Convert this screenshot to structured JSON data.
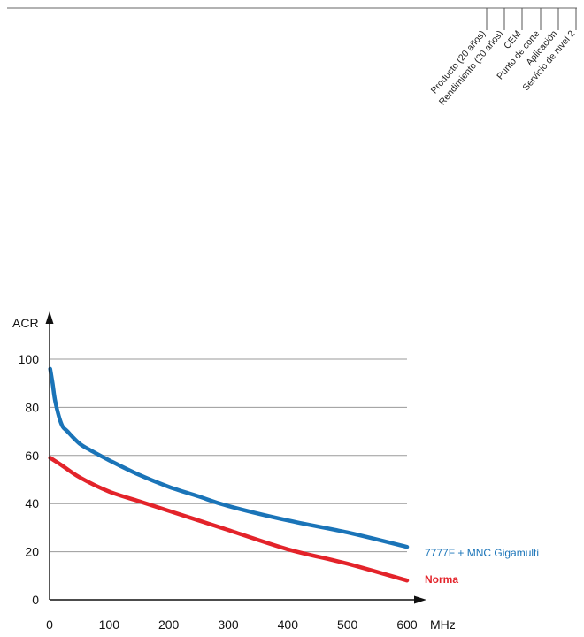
{
  "header": {
    "columns": [
      "Producto (20 años)",
      "Rendimiento (20 años)",
      "CEM",
      "Punto de corte",
      "Aplicación",
      "Servicio de nivel 2"
    ]
  },
  "chart_data": {
    "type": "line",
    "title": "",
    "xlabel": "MHz",
    "ylabel": "ACR",
    "xlim": [
      0,
      600
    ],
    "ylim": [
      0,
      100
    ],
    "x_ticks": [
      0,
      100,
      200,
      300,
      400,
      500,
      600
    ],
    "y_ticks": [
      0,
      20,
      40,
      60,
      80,
      100
    ],
    "grid": "horizontal",
    "legend": "right-end-of-lines",
    "series": [
      {
        "name": "7777F + MNC Gigamulti",
        "color": "#1a74b8",
        "x": [
          1,
          5,
          10,
          20,
          30,
          50,
          70,
          100,
          150,
          200,
          250,
          300,
          400,
          500,
          600
        ],
        "y": [
          96,
          90,
          82,
          73,
          70,
          65,
          62,
          58,
          52,
          47,
          43,
          39,
          33,
          28,
          22
        ]
      },
      {
        "name": "Norma",
        "color": "#e3232a",
        "x": [
          1,
          20,
          50,
          100,
          150,
          200,
          250,
          300,
          400,
          500,
          600
        ],
        "y": [
          59,
          56,
          51,
          45,
          41,
          37,
          33,
          29,
          21,
          15,
          8
        ]
      }
    ]
  }
}
